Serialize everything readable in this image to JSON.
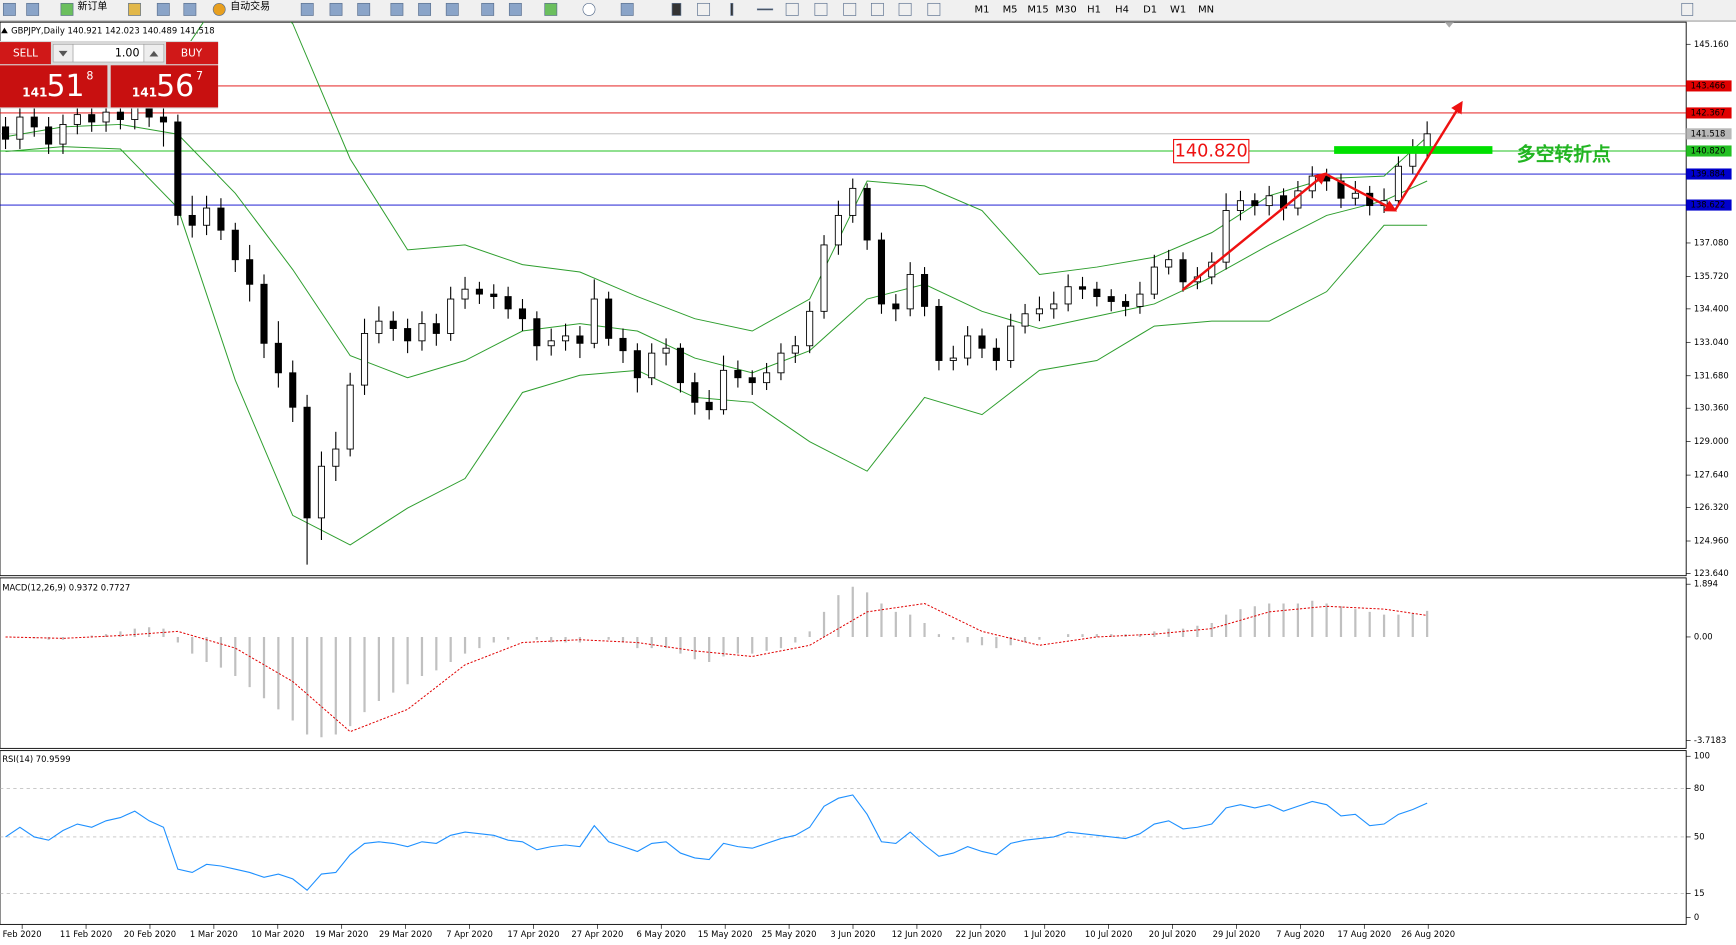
{
  "toolbar": {
    "new_order": "新订单",
    "auto_trading": "自动交易",
    "timeframes": [
      "M1",
      "M5",
      "M15",
      "M30",
      "H1",
      "H4",
      "D1",
      "W1",
      "MN"
    ]
  },
  "trade_panel": {
    "sell": "SELL",
    "buy": "BUY",
    "lot": "1.00",
    "sell_price": {
      "big": "141",
      "main": "51",
      "small": "8"
    },
    "buy_price": {
      "big": "141",
      "main": "56",
      "small": "7"
    }
  },
  "chart_data": {
    "type": "candlestick",
    "title": "GBPJPY,Daily  140.921 142.023 140.489 141.518",
    "dates": [
      "Feb 2020",
      "11 Feb 2020",
      "20 Feb 2020",
      "1 Mar 2020",
      "10 Mar 2020",
      "19 Mar 2020",
      "29 Mar 2020",
      "7 Apr 2020",
      "17 Apr 2020",
      "27 Apr 2020",
      "6 May 2020",
      "15 May 2020",
      "25 May 2020",
      "3 Jun 2020",
      "12 Jun 2020",
      "22 Jun 2020",
      "1 Jul 2020",
      "10 Jul 2020",
      "20 Jul 2020",
      "29 Jul 2020",
      "7 Aug 2020",
      "17 Aug 2020",
      "26 Aug 2020"
    ],
    "candles": {
      "open": [
        141.8,
        141.3,
        142.2,
        141.8,
        141.1,
        141.9,
        142.3,
        142.0,
        142.4,
        142.1,
        142.6,
        142.2,
        142.0,
        138.2,
        137.8,
        138.5,
        137.6,
        136.4,
        135.4,
        133.0,
        131.8,
        130.4,
        125.9,
        128.0,
        128.7,
        131.3,
        133.4,
        133.9,
        133.6,
        133.1,
        133.8,
        133.4,
        134.8,
        135.2,
        135.0,
        134.9,
        134.4,
        134.0,
        132.9,
        133.1,
        133.3,
        133.0,
        134.8,
        133.2,
        132.7,
        131.6,
        132.6,
        132.8,
        131.4,
        130.6,
        130.3,
        131.9,
        131.6,
        131.4,
        131.8,
        132.6,
        132.9,
        134.3,
        137.0,
        138.2,
        139.3,
        137.2,
        134.6,
        134.4,
        135.8,
        134.5,
        132.3,
        132.4,
        133.3,
        132.8,
        132.3,
        133.7,
        134.2,
        134.4,
        134.6,
        135.3,
        135.2,
        134.9,
        134.7,
        134.5,
        135.0,
        136.1,
        136.4,
        135.5,
        135.7,
        136.3,
        138.4,
        138.8,
        138.6,
        139.0,
        138.5,
        139.2,
        139.8,
        139.6,
        138.9,
        139.1,
        138.6,
        138.8,
        140.2,
        140.921
      ],
      "high": [
        142.2,
        142.6,
        142.6,
        142.2,
        142.3,
        142.7,
        142.7,
        142.8,
        142.8,
        143.0,
        143.0,
        142.6,
        142.3,
        139.0,
        139.0,
        138.9,
        137.9,
        137.0,
        135.8,
        133.9,
        132.3,
        130.9,
        128.6,
        129.4,
        131.8,
        134.0,
        134.5,
        134.3,
        134.0,
        134.3,
        134.2,
        135.3,
        135.7,
        135.5,
        135.4,
        135.3,
        134.8,
        134.3,
        133.6,
        133.8,
        133.7,
        135.6,
        135.1,
        133.6,
        133.0,
        133.0,
        133.2,
        133.0,
        131.8,
        131.1,
        132.5,
        132.3,
        131.9,
        132.2,
        133.0,
        133.3,
        134.7,
        137.4,
        138.8,
        139.7,
        139.5,
        137.5,
        135.0,
        136.3,
        136.1,
        134.8,
        132.9,
        133.7,
        133.6,
        133.2,
        134.2,
        134.6,
        134.9,
        135.1,
        135.8,
        135.7,
        135.5,
        135.2,
        135.0,
        135.5,
        136.6,
        136.8,
        136.7,
        136.1,
        136.7,
        139.1,
        139.2,
        139.1,
        139.4,
        139.3,
        139.6,
        140.2,
        140.1,
        139.9,
        139.6,
        139.4,
        139.3,
        140.6,
        141.3,
        142.023
      ],
      "low": [
        140.9,
        140.9,
        141.4,
        140.7,
        140.7,
        141.5,
        141.6,
        141.6,
        141.7,
        141.7,
        141.8,
        141.0,
        137.8,
        137.3,
        137.4,
        137.2,
        135.9,
        134.7,
        132.4,
        131.2,
        129.8,
        124.0,
        125.0,
        127.4,
        128.4,
        130.9,
        133.0,
        133.1,
        132.6,
        132.7,
        132.9,
        133.1,
        134.4,
        134.6,
        134.4,
        134.0,
        133.5,
        132.3,
        132.5,
        132.7,
        132.4,
        132.8,
        132.9,
        132.2,
        131.0,
        131.3,
        132.1,
        131.0,
        130.1,
        129.9,
        130.1,
        131.2,
        130.9,
        131.1,
        131.5,
        132.2,
        132.6,
        134.0,
        136.6,
        137.9,
        136.8,
        134.2,
        133.9,
        134.1,
        134.1,
        131.9,
        131.9,
        132.1,
        132.4,
        131.9,
        132.0,
        133.4,
        133.9,
        134.0,
        134.3,
        134.8,
        134.5,
        134.3,
        134.1,
        134.2,
        134.8,
        135.8,
        135.1,
        135.2,
        135.4,
        136.0,
        138.0,
        138.2,
        138.2,
        138.0,
        138.2,
        138.9,
        139.2,
        138.5,
        138.6,
        138.2,
        138.3,
        138.6,
        139.9,
        140.489
      ],
      "close": [
        141.3,
        142.2,
        141.8,
        141.1,
        141.9,
        142.3,
        142.0,
        142.4,
        142.1,
        142.6,
        142.2,
        142.0,
        138.2,
        137.8,
        138.5,
        137.6,
        136.4,
        135.4,
        133.0,
        131.8,
        130.4,
        125.9,
        128.0,
        128.7,
        131.3,
        133.4,
        133.9,
        133.6,
        133.1,
        133.8,
        133.4,
        134.8,
        135.2,
        135.0,
        134.9,
        134.4,
        134.0,
        132.9,
        133.1,
        133.3,
        133.0,
        134.8,
        133.2,
        132.7,
        131.6,
        132.6,
        132.8,
        131.4,
        130.6,
        130.3,
        131.9,
        131.6,
        131.4,
        131.8,
        132.6,
        132.9,
        134.3,
        137.0,
        138.2,
        139.3,
        137.2,
        134.6,
        134.4,
        135.8,
        134.5,
        132.3,
        132.4,
        133.3,
        132.8,
        132.3,
        133.7,
        134.2,
        134.4,
        134.6,
        135.3,
        135.2,
        134.9,
        134.7,
        134.5,
        135.0,
        136.1,
        136.4,
        135.5,
        135.7,
        136.3,
        138.4,
        138.8,
        138.6,
        139.0,
        138.5,
        139.2,
        139.8,
        139.6,
        138.9,
        139.1,
        138.6,
        138.8,
        140.2,
        140.9,
        141.518
      ]
    },
    "bands": {
      "color": "#2e9e2e",
      "x": [
        0,
        4,
        8,
        12,
        16,
        20,
        24,
        28,
        32,
        36,
        40,
        44,
        48,
        52,
        56,
        60,
        64,
        68,
        72,
        76,
        80,
        84,
        88,
        92,
        96,
        99
      ],
      "series": [
        {
          "values": [
            143.3,
            143.4,
            143.4,
            144.5,
            148.0,
            146.0,
            140.5,
            136.8,
            137.0,
            136.2,
            135.9,
            134.9,
            134.0,
            133.5,
            134.8,
            139.6,
            139.4,
            138.4,
            135.8,
            136.1,
            136.5,
            137.5,
            139.0,
            139.7,
            139.8,
            141.4
          ]
        },
        {
          "values": [
            141.4,
            141.8,
            141.9,
            141.5,
            139.1,
            136.0,
            132.5,
            131.6,
            132.3,
            133.5,
            133.8,
            133.5,
            132.4,
            131.8,
            132.7,
            134.8,
            135.4,
            134.3,
            133.6,
            134.1,
            134.6,
            135.7,
            137.0,
            138.2,
            138.8,
            139.6
          ]
        },
        {
          "values": [
            140.8,
            141.0,
            140.9,
            138.5,
            131.5,
            126.0,
            124.8,
            126.3,
            127.5,
            131.0,
            131.7,
            131.9,
            130.8,
            130.6,
            129.0,
            127.8,
            130.8,
            130.1,
            131.9,
            132.3,
            133.7,
            133.9,
            133.9,
            135.1,
            137.8,
            137.8
          ]
        }
      ]
    },
    "ylim": [
      123.55,
      146.06
    ],
    "yticks": [
      {
        "value": 145.16,
        "label": "145.160"
      },
      {
        "value": 137.08,
        "label": "137.080"
      },
      {
        "value": 135.72,
        "label": "135.720"
      },
      {
        "value": 134.4,
        "label": "134.400"
      },
      {
        "value": 133.04,
        "label": "133.040"
      },
      {
        "value": 131.68,
        "label": "131.680"
      },
      {
        "value": 130.36,
        "label": "130.360"
      },
      {
        "value": 129,
        "label": "129.000"
      },
      {
        "value": 127.64,
        "label": "127.640"
      },
      {
        "value": 126.32,
        "label": "126.320"
      },
      {
        "value": 124.96,
        "label": "124.960"
      },
      {
        "value": 123.64,
        "label": "123.640"
      }
    ],
    "levels": [
      {
        "value": 143.466,
        "color": "#e00000"
      },
      {
        "value": 142.367,
        "color": "#e00000"
      },
      {
        "value": 140.82,
        "label": "140.820",
        "color": "#22c022"
      },
      {
        "value": 139.884,
        "color": "#0000cc"
      },
      {
        "value": 138.622,
        "color": "#0000cc"
      }
    ],
    "bid_line": {
      "value": 141.518,
      "color": "#b8b8b8"
    },
    "annotation": "多空转折点",
    "macd": {
      "label": "MACD(12,26,9) 0.9372 0.7727",
      "hist_color": "#c0c0c0",
      "signal_color": "#e00000",
      "hist": [
        0.0,
        0.0,
        -0.05,
        -0.1,
        -0.1,
        0.0,
        0.05,
        0.1,
        0.2,
        0.3,
        0.35,
        0.3,
        -0.2,
        -0.6,
        -0.9,
        -1.1,
        -1.4,
        -1.8,
        -2.2,
        -2.6,
        -3.0,
        -3.5,
        -3.6,
        -3.5,
        -3.2,
        -2.7,
        -2.3,
        -2.0,
        -1.7,
        -1.4,
        -1.2,
        -0.9,
        -0.6,
        -0.4,
        -0.2,
        -0.1,
        0.0,
        -0.1,
        -0.2,
        -0.2,
        -0.2,
        0.0,
        -0.1,
        -0.2,
        -0.4,
        -0.4,
        -0.4,
        -0.6,
        -0.8,
        -0.9,
        -0.7,
        -0.6,
        -0.6,
        -0.5,
        -0.4,
        -0.2,
        0.2,
        0.9,
        1.5,
        1.8,
        1.6,
        1.2,
        0.9,
        0.8,
        0.5,
        0.1,
        -0.1,
        -0.2,
        -0.3,
        -0.4,
        -0.3,
        -0.2,
        -0.1,
        0.0,
        0.1,
        0.1,
        0.1,
        0.1,
        0.1,
        0.1,
        0.2,
        0.3,
        0.3,
        0.4,
        0.5,
        0.8,
        1.0,
        1.1,
        1.2,
        1.2,
        1.2,
        1.3,
        1.2,
        1.1,
        1.0,
        0.9,
        0.8,
        0.8,
        0.85,
        0.9372
      ],
      "signal": [
        0.0,
        -0.05,
        0.05,
        0.2,
        -0.4,
        -1.6,
        -3.4,
        -2.6,
        -1.0,
        -0.2,
        -0.1,
        -0.2,
        -0.5,
        -0.7,
        -0.3,
        0.9,
        1.2,
        0.2,
        -0.3,
        0.0,
        0.1,
        0.3,
        0.9,
        1.1,
        1.0,
        0.7727
      ],
      "ylim": [
        -4.0,
        2.12
      ],
      "yticks": [
        1.894,
        {
          "value": 0,
          "label": "0.00"
        },
        -3.7183
      ]
    },
    "rsi": {
      "label": "RSI(14) 70.9599",
      "color": "#1e90ff",
      "values": [
        50,
        56,
        50,
        48,
        54,
        58,
        56,
        60,
        62,
        66,
        60,
        56,
        30,
        28,
        33,
        32,
        30,
        28,
        25,
        27,
        24,
        17,
        27,
        28,
        39,
        46,
        47,
        46,
        44,
        47,
        46,
        51,
        53,
        52,
        51,
        48,
        47,
        42,
        44,
        45,
        44,
        57,
        47,
        44,
        41,
        46,
        47,
        40,
        37,
        36,
        46,
        44,
        43,
        46,
        49,
        51,
        56,
        69,
        74,
        76,
        64,
        47,
        46,
        53,
        45,
        38,
        40,
        44,
        41,
        39,
        46,
        48,
        49,
        50,
        53,
        52,
        51,
        50,
        49,
        52,
        58,
        60,
        55,
        56,
        58,
        68,
        70,
        68,
        70,
        66,
        69,
        72,
        70,
        63,
        64,
        57,
        58,
        64,
        67,
        70.9599
      ],
      "levels": [
        80,
        50,
        15
      ],
      "ylim": [
        -4.2,
        103.5
      ],
      "yticks": [
        100,
        80,
        50,
        15,
        0
      ]
    }
  }
}
